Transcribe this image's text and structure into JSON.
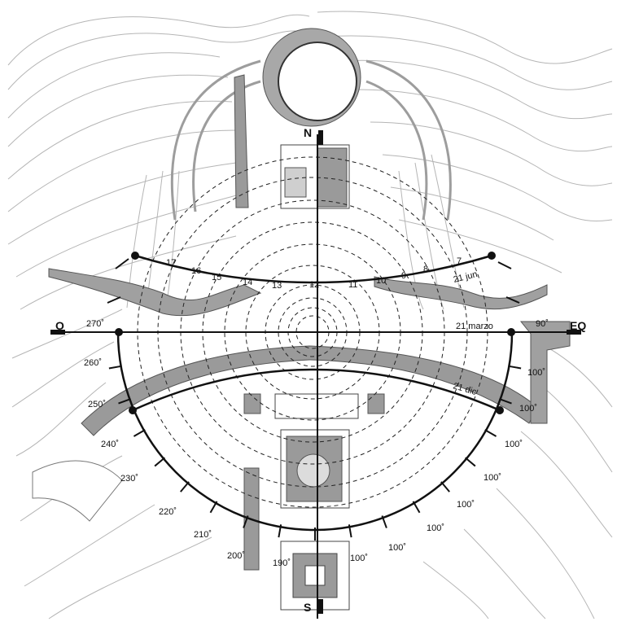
{
  "cardinal": {
    "north": "N",
    "south": "S",
    "west": "O",
    "east": "EQ"
  },
  "sun_paths": {
    "summer": "21 jun",
    "equinox": "21 marzo",
    "winter": "21 dic"
  },
  "hour_labels": [
    "17",
    "16",
    "15",
    "14",
    "13",
    "12",
    "11",
    "10",
    "9",
    "8",
    "7"
  ],
  "azimuth_labels": {
    "a270": "270˚",
    "a90": "90˚",
    "a260": "260˚",
    "a250": "250˚",
    "a240": "240˚",
    "a230": "230˚",
    "a220": "220˚",
    "a210": "210˚",
    "a200": "200˚",
    "a190": "190˚",
    "e1": "100˚",
    "e2": "100˚",
    "e3": "100˚",
    "e4": "100˚",
    "e5": "100˚",
    "e6": "100˚",
    "e7": "100˚",
    "e8": "100˚"
  },
  "colors": {
    "line": "#111111",
    "building_fill": "#9a9a9a",
    "contour": "#b9b9b9",
    "dashed": "#222222"
  }
}
